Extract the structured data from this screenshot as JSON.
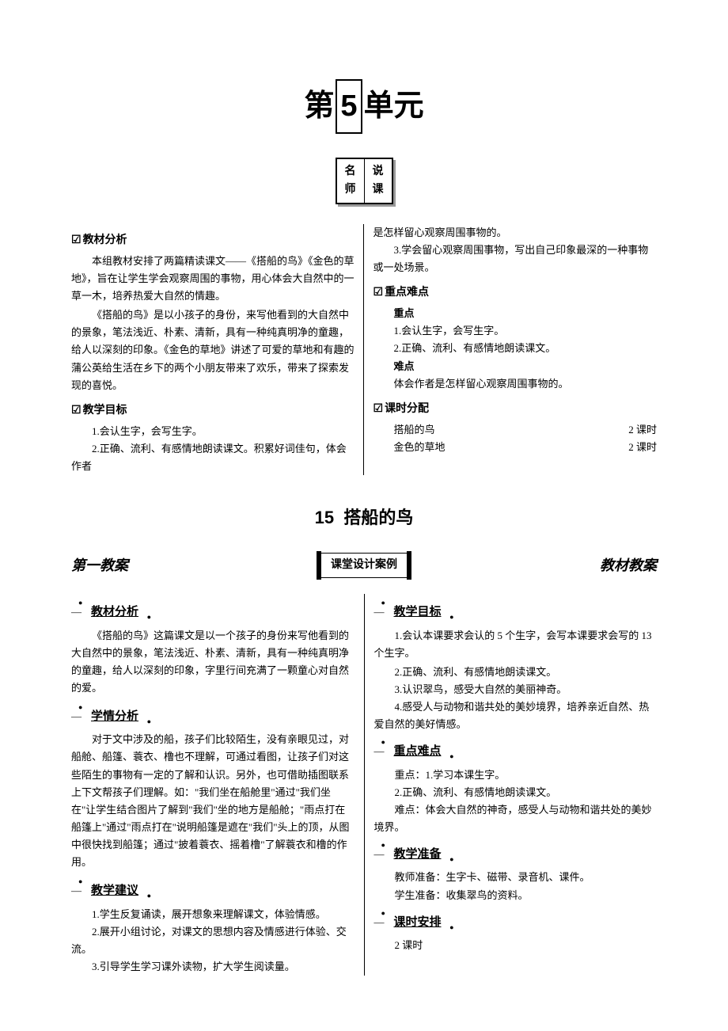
{
  "unit": {
    "prefix": "第",
    "number": "5",
    "suffix": "单元"
  },
  "teacher_box": {
    "left_top": "名",
    "left_bottom": "师",
    "right_top": "说",
    "right_bottom": "课"
  },
  "intro": {
    "left": {
      "header1": "教材分析",
      "p1": "本组教材安排了两篇精读课文——《搭船的鸟》《金色的草地》，旨在让学生学会观察周围的事物，用心体会大自然中的一草一木，培养热爱大自然的情趣。",
      "p2": "《搭船的鸟》是以小孩子的身份，来写他看到的大自然中的景象，笔法浅近、朴素、清新，具有一种纯真明净的童趣，给人以深刻的印象。《金色的草地》讲述了可爱的草地和有趣的蒲公英给生活在乡下的两个小朋友带来了欢乐，带来了探索发现的喜悦。",
      "header2": "教学目标",
      "g1": "1.会认生字，会写生字。",
      "g2": "2.正确、流利、有感情地朗读课文。积累好词佳句，体会作者"
    },
    "right": {
      "p1": "是怎样留心观察周围事物的。",
      "p2": "3.学会留心观察周围事物，写出自己印象最深的一种事物或一处场景。",
      "header1": "重点难点",
      "key_label": "重点",
      "k1": "1.会认生字，会写生字。",
      "k2": "2.正确、流利、有感情地朗读课文。",
      "diff_label": "难点",
      "d1": "体会作者是怎样留心观察周围事物的。",
      "header2": "课时分配",
      "time1_name": "搭船的鸟",
      "time1_val": "2 课时",
      "time2_name": "金色的草地",
      "time2_val": "2 课时"
    }
  },
  "lesson": {
    "number": "15",
    "title": "搭船的鸟"
  },
  "lesson_header": {
    "first_plan": "第一教案",
    "design_case": "课堂设计案例",
    "material_plan": "教材教案"
  },
  "plan": {
    "left": {
      "h1": "教材分析",
      "p1": "《搭船的鸟》这篇课文是以一个孩子的身份来写他看到的大自然中的景象，笔法浅近、朴素、清新，具有一种纯真明净的童趣，给人以深刻的印象，字里行间充满了一颗童心对自然的爱。",
      "h2": "学情分析",
      "p2": "对于文中涉及的船，孩子们比较陌生，没有亲眼见过，对船舱、船篷、蓑衣、橹也不理解，可通过看图，让孩子们对这些陌生的事物有一定的了解和认识。另外，也可借助插图联系上下文帮孩子们理解。如：\"我们坐在船舱里\"通过\"我们坐在\"让学生结合图片了解到\"我们\"坐的地方是船舱；\"雨点打在船篷上\"通过\"雨点打在\"说明船篷是遮在\"我们\"头上的顶，从图中很快找到船篷；通过\"披着蓑衣、摇着橹\"了解蓑衣和橹的作用。",
      "h3": "教学建议",
      "s1": "1.学生反复诵读，展开想象来理解课文，体验情感。",
      "s2": "2.展开小组讨论，对课文的思想内容及情感进行体验、交流。",
      "s3": "3.引导学生学习课外读物，扩大学生阅读量。"
    },
    "right": {
      "h1": "教学目标",
      "g1": "1.会认本课要求会认的 5 个生字，会写本课要求会写的 13 个生字。",
      "g2": "2.正确、流利、有感情地朗读课文。",
      "g3": "3.认识翠鸟，感受大自然的美丽神奇。",
      "g4": "4.感受人与动物和谐共处的美妙境界，培养亲近自然、热爱自然的美好情感。",
      "h2": "重点难点",
      "k1": "重点：1.学习本课生字。",
      "k2": "2.正确、流利、有感情地朗读课文。",
      "d1": "难点：体会大自然的神奇，感受人与动物和谐共处的美妙境界。",
      "h3": "教学准备",
      "prep1": "教师准备：生字卡、磁带、录音机、课件。",
      "prep2": "学生准备：收集翠鸟的资料。",
      "h4": "课时安排",
      "time": "2 课时"
    }
  }
}
